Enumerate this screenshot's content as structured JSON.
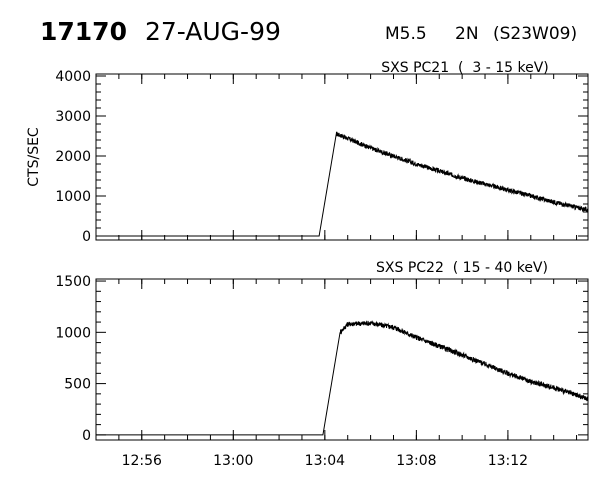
{
  "header": {
    "event_id": "17170",
    "date": "27-AUG-99",
    "goes_class": "M5.5",
    "optical_class": "2N",
    "location": "(S23W09)"
  },
  "chart_data": [
    {
      "type": "line",
      "title": "SXS PC21  (  3 - 15 keV)",
      "xlabel": "",
      "ylabel": "CTS/SEC",
      "xlim": [
        "12:54",
        "13:15:30"
      ],
      "ylim": [
        -100,
        4050
      ],
      "yticks": [
        0,
        1000,
        2000,
        3000,
        4000
      ],
      "xticks": [
        "12:56",
        "13:00",
        "13:04",
        "13:08",
        "13:12"
      ],
      "x_tick_labels_shown": false,
      "series": [
        {
          "x": [
            "13:03:45",
            "13:04:30",
            "13:04:40",
            "13:06:00",
            "13:08:00",
            "13:10:00",
            "13:12:00",
            "13:13:00",
            "13:14:00",
            "13:15:30"
          ],
          "y": [
            0,
            2550,
            2520,
            2200,
            1800,
            1450,
            1150,
            1000,
            850,
            650
          ]
        }
      ]
    },
    {
      "type": "line",
      "title": "SXS PC22  ( 15 - 40 keV)",
      "xlabel": "",
      "ylabel": "",
      "xlim": [
        "12:54",
        "13:15:30"
      ],
      "ylim": [
        -50,
        1520
      ],
      "yticks": [
        0,
        500,
        1000,
        1500
      ],
      "xticks": [
        "12:56",
        "13:00",
        "13:04",
        "13:08",
        "13:12"
      ],
      "x_tick_labels_shown": true,
      "series": [
        {
          "x": [
            "13:03:55",
            "13:04:40",
            "13:05:00",
            "13:06:00",
            "13:07:00",
            "13:08:00",
            "13:10:00",
            "13:12:00",
            "13:13:00",
            "13:14:00",
            "13:15:30"
          ],
          "y": [
            0,
            1000,
            1080,
            1090,
            1050,
            950,
            780,
            600,
            520,
            460,
            350
          ]
        }
      ]
    }
  ],
  "style": {
    "line_color": "#000000",
    "background": "#ffffff"
  }
}
